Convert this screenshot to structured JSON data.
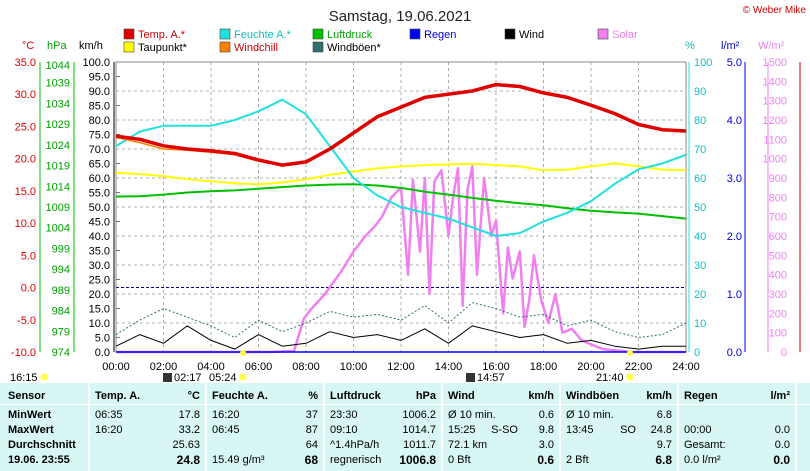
{
  "title": "Samstag, 19.06.2021",
  "copyright": "© Weber Mike",
  "axis_units": {
    "temp": "°C",
    "hpa": "hPa",
    "kmh": "km/h",
    "pct": "%",
    "lm2": "l/m²",
    "wm2": "W/m²"
  },
  "legend": [
    {
      "label": "Temp. A.*",
      "color": "#e00000"
    },
    {
      "label": "Feuchte A.*",
      "color": "#20e0e0"
    },
    {
      "label": "Luftdruck",
      "color": "#00c000"
    },
    {
      "label": "Regen",
      "color": "#0000ff"
    },
    {
      "label": "Wind",
      "color": "#000000"
    },
    {
      "label": "Solar",
      "color": "#f080f0"
    },
    {
      "label": "Taupunkt*",
      "color": "#ffff00"
    },
    {
      "label": "Windchill",
      "color": "#ff8000"
    },
    {
      "label": "Windböen*",
      "color": "#307070"
    }
  ],
  "markers": {
    "sunrise": "05:24",
    "sunset": "21:40",
    "moonrise": "02:17",
    "moonset": "14:57",
    "left": "16:15"
  },
  "chart_data": {
    "type": "line",
    "title": "Samstag, 19.06.2021",
    "x_ticks": [
      "00:00",
      "02:00",
      "04:00",
      "06:00",
      "08:00",
      "10:00",
      "12:00",
      "14:00",
      "16:00",
      "18:00",
      "20:00",
      "22:00",
      "24:00"
    ],
    "axes": {
      "temp_c": {
        "range": [
          -10,
          35
        ],
        "ticks": [
          "35.0",
          "30.0",
          "25.0",
          "20.0",
          "15.0",
          "10.0",
          "5.0",
          "0.0",
          "-5.0",
          "-10.0"
        ]
      },
      "pressure_hpa": {
        "range": [
          974,
          1044
        ],
        "ticks": [
          "1044",
          "1039",
          "1034",
          "1029",
          "1024",
          "1019",
          "1014",
          "1009",
          "1004",
          "999",
          "994",
          "989",
          "984",
          "979",
          "974"
        ]
      },
      "wind_kmh": {
        "range": [
          0,
          100
        ],
        "ticks": [
          "100.0",
          "95.0",
          "90.0",
          "85.0",
          "80.0",
          "75.0",
          "70.0",
          "65.0",
          "60.0",
          "55.0",
          "50.0",
          "45.0",
          "40.0",
          "35.0",
          "30.0",
          "25.0",
          "20.0",
          "15.0",
          "10.0",
          "5.0",
          "0.0"
        ]
      },
      "humidity_pct": {
        "range": [
          0,
          100
        ],
        "ticks": [
          "100",
          "90",
          "80",
          "70",
          "60",
          "50",
          "40",
          "30",
          "20",
          "10",
          "0"
        ]
      },
      "rain_lm2": {
        "range": [
          0,
          5
        ],
        "ticks": [
          "5.0",
          "4.0",
          "3.0",
          "2.0",
          "1.0",
          "0.0"
        ]
      },
      "solar_wm2": {
        "range": [
          0,
          1500
        ],
        "ticks": [
          "1500",
          "1400",
          "1300",
          "1200",
          "1100",
          "1000",
          "900",
          "800",
          "700",
          "600",
          "500",
          "400",
          "300",
          "200",
          "100",
          "0"
        ]
      }
    },
    "series": [
      {
        "name": "Temp. A.*",
        "axis": "temp_c",
        "color": "#e00000",
        "x": [
          0,
          1,
          2,
          3,
          4,
          5,
          6,
          7,
          8,
          9,
          10,
          11,
          12,
          13,
          14,
          15,
          16,
          17,
          18,
          19,
          20,
          21,
          22,
          23,
          24
        ],
        "y": [
          23.5,
          23,
          22,
          21.5,
          21.2,
          20.8,
          19.8,
          19,
          19.5,
          21.5,
          24,
          26.5,
          28,
          29.5,
          30,
          30.5,
          31.5,
          31.2,
          30.2,
          29.5,
          28.3,
          27,
          25.3,
          24.5,
          24.3
        ]
      },
      {
        "name": "Windchill",
        "axis": "temp_c",
        "color": "#ff8000",
        "x": [
          0,
          1,
          2,
          3,
          4,
          5,
          6,
          7,
          8,
          9,
          10,
          11,
          12,
          13,
          14,
          15,
          16,
          17,
          18,
          19,
          20,
          21,
          22,
          23,
          24
        ],
        "y": [
          23.3,
          22.5,
          21.5,
          21.3,
          21,
          20.6,
          19.6,
          18.9,
          19.4,
          21.4,
          23.9,
          26.4,
          27.9,
          29.4,
          29.9,
          30.4,
          31.4,
          31.1,
          30.1,
          29.4,
          28.2,
          26.9,
          25.2,
          24.4,
          24.2
        ]
      },
      {
        "name": "Taupunkt*",
        "axis": "temp_c",
        "color": "#ffff00",
        "x": [
          0,
          1,
          2,
          3,
          4,
          5,
          6,
          7,
          8,
          9,
          10,
          11,
          12,
          13,
          14,
          15,
          16,
          17,
          18,
          19,
          20,
          21,
          22,
          23,
          24
        ],
        "y": [
          17.8,
          17.6,
          17.3,
          16.8,
          16.5,
          16.2,
          16.0,
          16.3,
          16.8,
          17.5,
          18,
          18.5,
          18.8,
          19,
          19.1,
          19.2,
          19,
          18.8,
          18.2,
          18.3,
          18.8,
          19.3,
          18.8,
          18.3,
          18.2
        ]
      },
      {
        "name": "Feuchte A.*",
        "axis": "humidity_pct",
        "color": "#20e0e0",
        "x": [
          0,
          1,
          2,
          3,
          4,
          5,
          6,
          7,
          8,
          9,
          10,
          11,
          12,
          13,
          14,
          15,
          16,
          17,
          18,
          19,
          20,
          21,
          22,
          23,
          24
        ],
        "y": [
          71,
          76,
          78,
          78,
          78,
          80,
          83,
          87,
          82,
          71,
          60,
          54,
          50,
          48,
          46,
          43,
          40,
          41,
          45,
          48,
          52,
          58,
          63,
          65,
          68
        ]
      },
      {
        "name": "Luftdruck",
        "axis": "pressure_hpa",
        "color": "#00c000",
        "x": [
          0,
          1,
          2,
          3,
          4,
          5,
          6,
          7,
          8,
          9,
          10,
          11,
          12,
          13,
          14,
          15,
          16,
          17,
          18,
          19,
          20,
          21,
          22,
          23,
          24
        ],
        "y": [
          1011.5,
          1011.6,
          1012,
          1012.5,
          1012.8,
          1013,
          1013.4,
          1013.8,
          1014.2,
          1014.4,
          1014.5,
          1014.2,
          1013.6,
          1012.7,
          1012,
          1011.2,
          1010.5,
          1009.9,
          1009.4,
          1008.7,
          1008.1,
          1007.7,
          1007.4,
          1006.8,
          1006.2
        ]
      },
      {
        "name": "Solar",
        "axis": "solar_wm2",
        "color": "#f080f0",
        "x": [
          0,
          5.4,
          6.5,
          7.5,
          7.9,
          8.2,
          8.8,
          9.5,
          10,
          10.5,
          10.9,
          11.2,
          11.6,
          12,
          12.3,
          12.5,
          12.8,
          13,
          13.2,
          13.4,
          13.7,
          14,
          14.2,
          14.4,
          14.6,
          14.8,
          15,
          15.2,
          15.5,
          15.8,
          16,
          16.3,
          16.5,
          16.7,
          17,
          17.2,
          17.4,
          17.6,
          17.9,
          18.2,
          18.5,
          18.8,
          19.2,
          19.6,
          20,
          20.5,
          21.7,
          24
        ],
        "y": [
          0,
          0,
          0,
          5,
          170,
          220,
          300,
          420,
          520,
          600,
          650,
          700,
          800,
          850,
          400,
          890,
          520,
          900,
          300,
          880,
          940,
          600,
          810,
          950,
          240,
          840,
          960,
          400,
          900,
          600,
          680,
          200,
          540,
          380,
          520,
          130,
          270,
          500,
          270,
          150,
          300,
          100,
          120,
          60,
          40,
          15,
          0,
          0
        ]
      },
      {
        "name": "Wind",
        "axis": "wind_kmh",
        "color": "#000000",
        "x": [
          0,
          1,
          2,
          3,
          4,
          5,
          6,
          7,
          8,
          9,
          10,
          11,
          12,
          13,
          14,
          15,
          16,
          17,
          18,
          19,
          20,
          21,
          22,
          23,
          24
        ],
        "y": [
          2,
          6,
          3,
          9,
          4,
          1,
          6,
          2,
          3,
          7,
          5,
          6,
          4,
          8,
          3,
          9,
          7,
          5,
          6,
          3,
          4,
          2,
          1,
          2,
          2
        ]
      },
      {
        "name": "Windböen*",
        "axis": "wind_kmh",
        "color": "#307070",
        "x": [
          0,
          1,
          2,
          3,
          4,
          5,
          6,
          7,
          8,
          9,
          10,
          11,
          12,
          13,
          14,
          15,
          16,
          17,
          18,
          19,
          20,
          21,
          22,
          23,
          24
        ],
        "y": [
          6,
          11,
          15,
          12,
          9,
          5,
          11,
          7,
          10,
          14,
          12,
          13,
          11,
          16,
          10,
          17,
          15,
          12,
          13,
          9,
          11,
          7,
          5,
          6,
          10
        ]
      },
      {
        "name": "Regen",
        "axis": "rain_lm2",
        "color": "#0000ff",
        "x": [
          0,
          24
        ],
        "y": [
          0,
          0
        ]
      }
    ],
    "guide_lines": [
      {
        "axis": "temp_c",
        "value": 0,
        "color": "#0000a0",
        "style": "dashed"
      }
    ]
  },
  "table": {
    "headers": [
      "Sensor",
      "Temp. A.",
      "°C",
      "Feuchte A.",
      "%",
      "Luftdruck",
      "hPa",
      "Wind",
      "km/h",
      "Windböen",
      "km/h",
      "Regen",
      "l/m²"
    ],
    "rows": [
      {
        "label": "MinWert",
        "temp_time": "06:35",
        "temp": "17.8",
        "hum_time": "16:20",
        "hum": "37",
        "pres_time": "23:30",
        "pres": "1006.2",
        "wind_lbl": "Ø 10 min.",
        "wind_dir": "",
        "wind": "0.6",
        "gust_lbl": "Ø 10 min.",
        "gust_dir": "",
        "gust": "6.8",
        "rain_lbl": "",
        "rain": ""
      },
      {
        "label": "MaxWert",
        "temp_time": "16:20",
        "temp": "33.2",
        "hum_time": "06:45",
        "hum": "87",
        "pres_time": "09:10",
        "pres": "1014.7",
        "wind_lbl": "15:25",
        "wind_dir": "S-SO",
        "wind": "9.8",
        "gust_lbl": "13:45",
        "gust_dir": "SO",
        "gust": "24.8",
        "rain_lbl": "00:00",
        "rain": "0.0"
      },
      {
        "label": "Durchschnitt",
        "temp_time": "",
        "temp": "25.63",
        "hum_time": "",
        "hum": "64",
        "pres_time": "^1.4hPa/h",
        "pres": "1011.7",
        "wind_lbl": "72.1 km",
        "wind_dir": "",
        "wind": "3.0",
        "gust_lbl": "",
        "gust_dir": "",
        "gust": "9.7",
        "rain_lbl": "Gesamt:",
        "rain": "0.0"
      },
      {
        "label": "19.06. 23:55",
        "temp_time": "",
        "temp": "24.8",
        "hum_time": "15.49 g/m³",
        "hum": "68",
        "pres_time": "regnerisch",
        "pres": "1006.8",
        "wind_lbl": "0 Bft",
        "wind_dir": "",
        "wind": "0.6",
        "gust_lbl": "2 Bft",
        "gust_dir": "",
        "gust": "6.8",
        "rain_lbl": "0.0 l/m²",
        "rain": "0.0"
      }
    ]
  }
}
